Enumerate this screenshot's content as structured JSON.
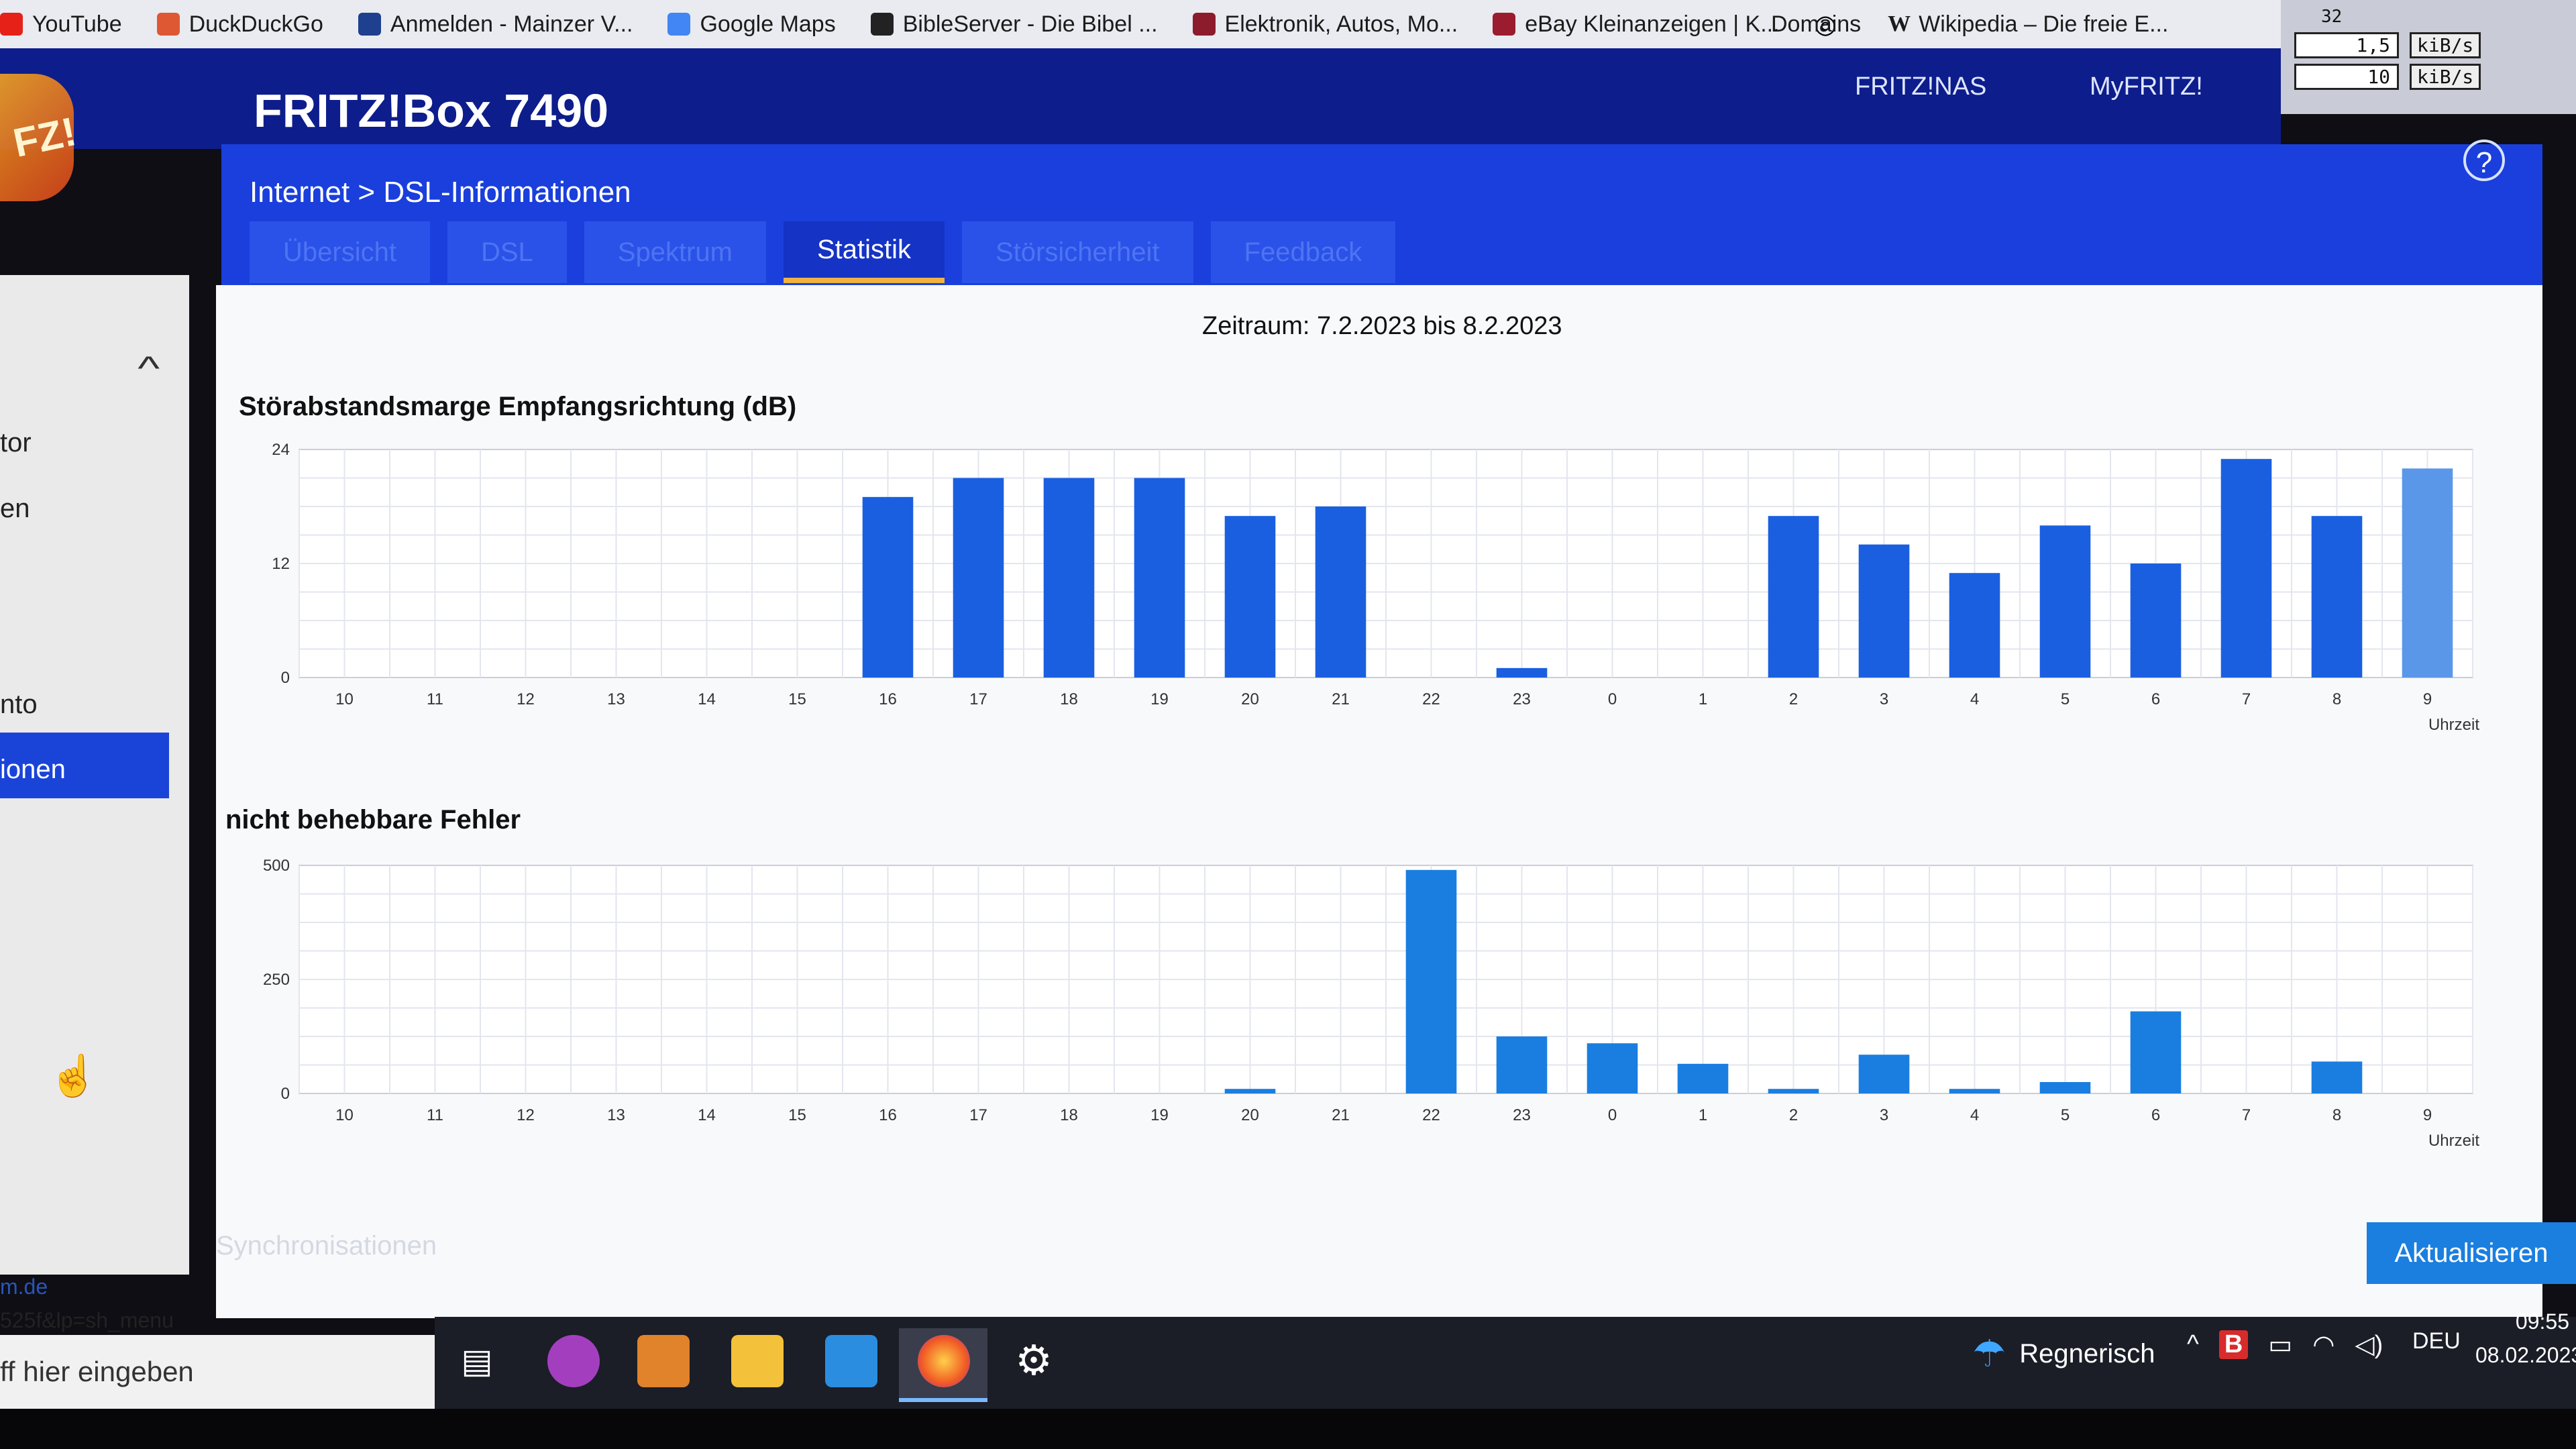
{
  "bookmarks": [
    {
      "label": "YouTube",
      "color": "#e62117"
    },
    {
      "label": "DuckDuckGo",
      "color": "#de5833"
    },
    {
      "label": "Anmelden - Mainzer V...",
      "color": "#1f3f8f"
    },
    {
      "label": "Google Maps",
      "color": "#4285f4"
    },
    {
      "label": "BibleServer - Die Bibel ...",
      "color": "#222222"
    },
    {
      "label": "Elektronik, Autos, Mo...",
      "color": "#8c1b2c"
    },
    {
      "label": "eBay Kleinanzeigen | K...",
      "color": "#9b1c2e"
    }
  ],
  "bookmarks_right": {
    "domains": "Domains",
    "wikipedia": "Wikipedia – Die freie E..."
  },
  "speed": {
    "top": "32",
    "down": "1,5",
    "up": "10",
    "unit": "kiB/s"
  },
  "header": {
    "logo": "FZ!",
    "product": "FRITZ!Box 7490",
    "nav_nas": "FRITZ!NAS",
    "nav_myfritz": "MyFRITZ!",
    "help": "?"
  },
  "breadcrumb": "Internet > DSL-Informationen",
  "tabs": [
    {
      "label": "Übersicht",
      "active": false
    },
    {
      "label": "DSL",
      "active": false
    },
    {
      "label": "Spektrum",
      "active": false
    },
    {
      "label": "Statistik",
      "active": true
    },
    {
      "label": "Störsicherheit",
      "active": false
    },
    {
      "label": "Feedback",
      "active": false
    }
  ],
  "sidebar": {
    "items": [
      "tor",
      "en",
      "nto"
    ],
    "active": "ionen",
    "url": "m.de",
    "menu_url": "525f&lp=sh_menu"
  },
  "search_placeholder": "ff hier eingeben",
  "period": "Zeitraum: 7.2.2023 bis 8.2.2023",
  "sync_label": "Synchronisationen",
  "refresh_button": "Aktualisieren",
  "taskbar": {
    "weather": "Regnerisch",
    "lang": "DEU",
    "time": "09:55",
    "date": "08.02.2023",
    "tray_badge": "B"
  },
  "chart_data": [
    {
      "type": "bar",
      "title": "Störabstandsmarge Empfangsrichtung (dB)",
      "xlabel": "Uhrzeit",
      "ylabel": "",
      "categories": [
        "10",
        "11",
        "12",
        "13",
        "14",
        "15",
        "16",
        "17",
        "18",
        "19",
        "20",
        "21",
        "22",
        "23",
        "0",
        "1",
        "2",
        "3",
        "4",
        "5",
        "6",
        "7",
        "8",
        "9"
      ],
      "values": [
        0,
        0,
        0,
        0,
        0,
        0,
        19,
        21,
        21,
        21,
        17,
        18,
        0,
        1,
        0,
        0,
        17,
        14,
        11,
        16,
        12,
        23,
        17,
        22
      ],
      "ylim": [
        0,
        24
      ],
      "yticks": [
        "0",
        "12",
        "24"
      ],
      "grid": true,
      "bar_color": "#1a5fe0",
      "last_bar_color": "#5b97e8"
    },
    {
      "type": "bar",
      "title": "nicht behebbare Fehler",
      "xlabel": "Uhrzeit",
      "ylabel": "",
      "categories": [
        "10",
        "11",
        "12",
        "13",
        "14",
        "15",
        "16",
        "17",
        "18",
        "19",
        "20",
        "21",
        "22",
        "23",
        "0",
        "1",
        "2",
        "3",
        "4",
        "5",
        "6",
        "7",
        "8",
        "9"
      ],
      "values": [
        0,
        0,
        0,
        0,
        0,
        0,
        0,
        0,
        0,
        0,
        10,
        0,
        490,
        125,
        110,
        65,
        10,
        85,
        10,
        25,
        180,
        0,
        70,
        0
      ],
      "ylim": [
        0,
        500
      ],
      "yticks": [
        "0",
        "250",
        "500"
      ],
      "grid": true,
      "bar_color": "#1a7ee0"
    }
  ]
}
